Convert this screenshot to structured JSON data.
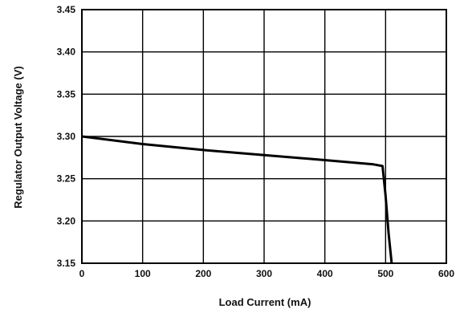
{
  "chart_data": {
    "type": "line",
    "title": "",
    "xlabel": "Load Current (mA)",
    "ylabel": "Regulator Output Voltage (V)",
    "xlim": [
      0,
      600
    ],
    "ylim": [
      3.15,
      3.45
    ],
    "x_ticks": [
      "0",
      "100",
      "200",
      "300",
      "400",
      "500",
      "600"
    ],
    "y_ticks": [
      "3.15",
      "3.20",
      "3.25",
      "3.30",
      "3.35",
      "3.40",
      "3.45"
    ],
    "grid": true,
    "legend": "none",
    "series": [
      {
        "x": [
          0,
          100,
          200,
          300,
          400,
          480,
          495,
          500,
          505,
          510
        ],
        "y": [
          3.3,
          3.291,
          3.284,
          3.278,
          3.272,
          3.267,
          3.265,
          3.23,
          3.185,
          3.15
        ]
      }
    ]
  },
  "colors": {
    "line": "#000000",
    "grid": "#000000",
    "text": "#111111"
  }
}
